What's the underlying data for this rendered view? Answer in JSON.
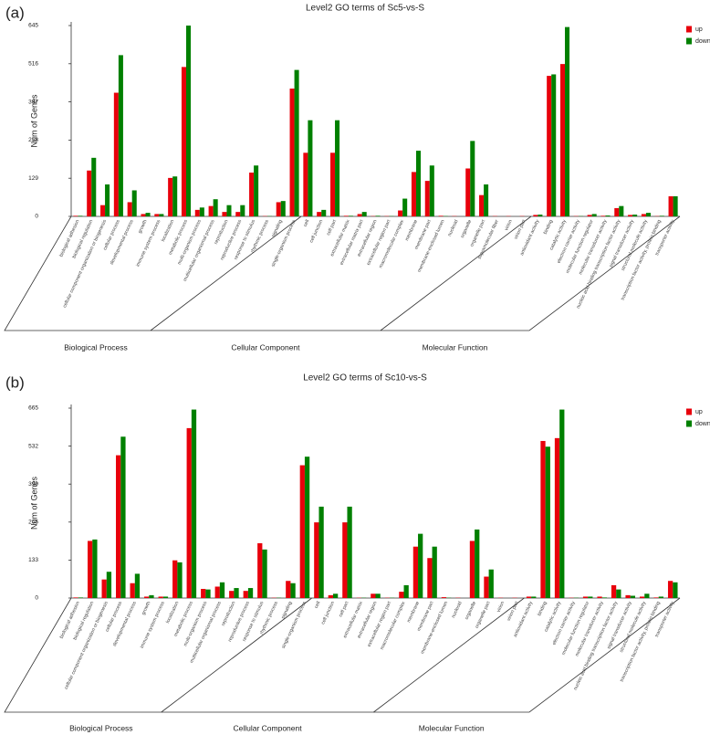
{
  "chart_data": [
    {
      "type": "bar",
      "label": "(a)",
      "title": "Level2 GO terms of Sc5-vs-S",
      "y_label": "Num of Genes",
      "ylim": [
        0,
        645
      ],
      "yticks": [
        0,
        129,
        258,
        387,
        516,
        645
      ],
      "legend": "right",
      "groups": [
        {
          "name": "Biological Process",
          "categories": [
            "biological adhesion",
            "biological regulation",
            "cellular component organization or biogenesis",
            "cellular process",
            "developmental process",
            "growth",
            "immune system process",
            "localization",
            "metabolic process",
            "multi-organism process",
            "multicellular organismal process",
            "reproduction",
            "reproductive process",
            "response to stimulus",
            "rhythmic process",
            "signaling",
            "single-organism process"
          ]
        },
        {
          "name": "Cellular Component",
          "categories": [
            "cell",
            "cell junction",
            "cell part",
            "extracellular matrix",
            "extracellular matrix part",
            "extracellular region",
            "extracellular region part",
            "macromolecular complex",
            "membrane",
            "membrane part",
            "membrane-enclosed lumen",
            "nucleoid",
            "organelle",
            "organelle part",
            "supramolecular fiber",
            "virion",
            "virion part"
          ]
        },
        {
          "name": "Molecular Function",
          "categories": [
            "antioxidant activity",
            "binding",
            "catalytic activity",
            "electron carrier activity",
            "molecular function regulator",
            "molecular transducer activity",
            "nucleic acid binding transcription factor activity",
            "signal transducer activity",
            "structural molecule activity",
            "transcription factor activity, protein binding",
            "transporter activity"
          ]
        }
      ],
      "series": [
        {
          "name": "up",
          "color": "#e8000b",
          "values": [
            2,
            155,
            38,
            418,
            48,
            8,
            8,
            130,
            505,
            22,
            35,
            15,
            15,
            148,
            1,
            48,
            432,
            215,
            15,
            215,
            2,
            8,
            1,
            1,
            20,
            150,
            120,
            2,
            1,
            162,
            72,
            1,
            1,
            1,
            5,
            475,
            515,
            1,
            5,
            2,
            28,
            5,
            8,
            1,
            68
          ]
        },
        {
          "name": "down",
          "color": "#008000",
          "values": [
            2,
            198,
            108,
            545,
            88,
            12,
            8,
            135,
            645,
            30,
            58,
            38,
            38,
            172,
            1,
            52,
            495,
            325,
            22,
            325,
            2,
            15,
            2,
            1,
            60,
            222,
            172,
            1,
            0,
            255,
            108,
            0,
            0,
            0,
            6,
            480,
            640,
            1,
            8,
            3,
            35,
            6,
            12,
            2,
            68
          ]
        }
      ]
    },
    {
      "type": "bar",
      "label": "(b)",
      "title": "Level2 GO terms of Sc10-vs-S",
      "y_label": "Num of Genes",
      "ylim": [
        0,
        665
      ],
      "yticks": [
        0,
        133,
        266,
        399,
        532,
        665
      ],
      "legend": "right",
      "groups": [
        {
          "name": "Biological Process",
          "categories": [
            "biological adhesion",
            "biological regulation",
            "cellular component organization or biogenesis",
            "cellular process",
            "developmental process",
            "growth",
            "immune system process",
            "localization",
            "metabolic process",
            "multi-organism process",
            "multicellular organismal process",
            "reproduction",
            "reproductive process",
            "response to stimulus",
            "rhythmic process",
            "signaling",
            "single-organism process"
          ]
        },
        {
          "name": "Cellular Component",
          "categories": [
            "cell",
            "cell junction",
            "cell part",
            "extracellular matrix",
            "extracellular region",
            "extracellular region part",
            "macromolecular complex",
            "membrane",
            "membrane part",
            "membrane-enclosed lumen",
            "nucleoid",
            "organelle",
            "organelle part",
            "virion",
            "virion part"
          ]
        },
        {
          "name": "Molecular Function",
          "categories": [
            "antioxidant activity",
            "binding",
            "catalytic activity",
            "electron carrier activity",
            "molecular function regulator",
            "molecular transducer activity",
            "nucleic acid binding transcription factor activity",
            "signal transducer activity",
            "structural molecule activity",
            "transcription factor activity, protein binding",
            "transporter activity"
          ]
        }
      ],
      "series": [
        {
          "name": "up",
          "color": "#e8000b",
          "values": [
            2,
            200,
            65,
            500,
            52,
            5,
            5,
            132,
            595,
            32,
            40,
            25,
            25,
            192,
            1,
            60,
            465,
            265,
            10,
            265,
            1,
            15,
            1,
            22,
            180,
            140,
            3,
            1,
            200,
            75,
            1,
            1,
            5,
            550,
            560,
            1,
            5,
            5,
            45,
            10,
            5,
            2,
            60
          ]
        },
        {
          "name": "down",
          "color": "#008000",
          "values": [
            2,
            205,
            92,
            565,
            85,
            10,
            5,
            125,
            660,
            30,
            55,
            35,
            35,
            170,
            1,
            52,
            495,
            320,
            15,
            320,
            1,
            15,
            1,
            45,
            225,
            180,
            1,
            0,
            240,
            100,
            0,
            0,
            5,
            530,
            660,
            1,
            5,
            2,
            30,
            8,
            15,
            5,
            55
          ]
        }
      ]
    }
  ]
}
